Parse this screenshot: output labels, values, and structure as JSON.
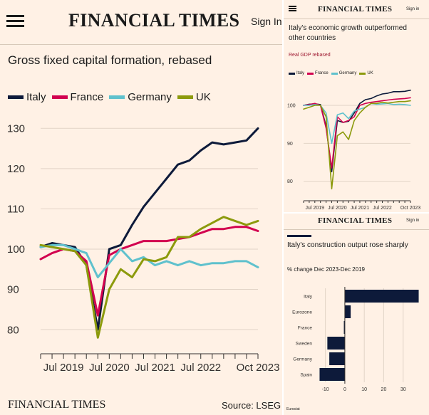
{
  "brand": "FINANCIAL TIMES",
  "sign_in": "Sign In",
  "sign_in_small": "Sign in",
  "colors": {
    "italy": "#0d1a3a",
    "france": "#d2004f",
    "germany": "#5fc1cd",
    "uk": "#8c9a0c",
    "bar": "#0d1a3a",
    "background": "#fff1e5"
  },
  "main_panel": {
    "source": "Source: LSEG",
    "footer_brand": "FINANCIAL TIMES"
  },
  "right_bottom_panel": {
    "footer": "Eurostat"
  },
  "chart_data": [
    {
      "type": "line",
      "title": "Gross fixed capital formation, rebased",
      "x_tick_labels": [
        "Jul 2019",
        "Jul 2020",
        "Jul 2021",
        "Jul 2022",
        "Oct 2023"
      ],
      "y_tick_labels": [
        "130",
        "120",
        "110",
        "100",
        "90",
        "80"
      ],
      "ylim": [
        77,
        132
      ],
      "x": [
        2019.0,
        2019.25,
        2019.5,
        2019.75,
        2020.0,
        2020.25,
        2020.5,
        2020.75,
        2021.0,
        2021.25,
        2021.5,
        2021.75,
        2022.0,
        2022.25,
        2022.5,
        2022.75,
        2023.0,
        2023.25,
        2023.5,
        2023.75
      ],
      "series": [
        {
          "name": "Italy",
          "color_key": "italy",
          "values": [
            100.5,
            101.5,
            101.0,
            100.5,
            96.0,
            80.0,
            100.0,
            101.0,
            106.0,
            110.5,
            114.0,
            117.5,
            121.0,
            122.0,
            124.5,
            126.5,
            126.0,
            126.5,
            127.0,
            130.0
          ]
        },
        {
          "name": "France",
          "color_key": "france",
          "values": [
            97.5,
            99.0,
            100.0,
            99.5,
            97.0,
            83.5,
            98.5,
            100.0,
            101.0,
            102.0,
            102.0,
            102.0,
            102.5,
            103.0,
            104.0,
            105.0,
            105.0,
            105.5,
            105.5,
            104.5
          ]
        },
        {
          "name": "Germany",
          "color_key": "germany",
          "values": [
            100.5,
            101.0,
            101.0,
            100.0,
            99.0,
            93.0,
            96.5,
            100.0,
            97.0,
            98.0,
            96.0,
            97.0,
            96.0,
            97.0,
            96.0,
            96.5,
            96.5,
            97.0,
            97.0,
            95.5
          ]
        },
        {
          "name": "UK",
          "color_key": "uk",
          "values": [
            101.0,
            100.5,
            100.0,
            99.5,
            96.0,
            78.0,
            90.0,
            95.0,
            93.0,
            97.5,
            97.0,
            98.0,
            103.0,
            103.0,
            105.0,
            106.5,
            108.0,
            107.0,
            106.0,
            107.0
          ]
        }
      ]
    },
    {
      "type": "line",
      "title": "Italy's economic growth outperformed other countries",
      "subtitle": "Real GDP rebased",
      "x_tick_labels": [
        "Jul 2019",
        "Jul 2020",
        "Jul 2021",
        "Jul 2022",
        "Oct 2023"
      ],
      "y_tick_labels": [
        "100",
        "90",
        "80"
      ],
      "ylim": [
        76,
        106
      ],
      "x": [
        2019.0,
        2019.25,
        2019.5,
        2019.75,
        2020.0,
        2020.25,
        2020.5,
        2020.75,
        2021.0,
        2021.25,
        2021.5,
        2021.75,
        2022.0,
        2022.25,
        2022.5,
        2022.75,
        2023.0,
        2023.25,
        2023.5,
        2023.75
      ],
      "series": [
        {
          "name": "Italy",
          "color_key": "italy",
          "values": [
            100.0,
            100.3,
            100.4,
            100.2,
            94.5,
            82.5,
            96.0,
            95.5,
            95.8,
            98.0,
            100.5,
            101.5,
            101.8,
            102.5,
            103.0,
            103.2,
            103.6,
            103.6,
            103.7,
            104.0
          ]
        },
        {
          "name": "France",
          "color_key": "france",
          "values": [
            100.0,
            100.2,
            100.5,
            100.0,
            94.0,
            83.5,
            97.0,
            95.5,
            96.0,
            97.0,
            100.0,
            100.5,
            100.8,
            101.0,
            101.2,
            101.4,
            101.6,
            101.7,
            101.8,
            102.0
          ]
        },
        {
          "name": "Germany",
          "color_key": "germany",
          "values": [
            100.0,
            100.0,
            100.2,
            100.0,
            98.0,
            90.0,
            97.5,
            98.0,
            96.5,
            98.5,
            99.0,
            99.5,
            100.5,
            100.3,
            100.4,
            100.5,
            100.2,
            100.3,
            100.2,
            100.0
          ]
        },
        {
          "name": "UK",
          "color_key": "uk",
          "values": [
            99.0,
            99.5,
            100.0,
            100.0,
            97.0,
            78.0,
            92.0,
            93.0,
            91.0,
            96.0,
            98.0,
            99.5,
            100.5,
            100.5,
            100.8,
            100.6,
            100.8,
            101.0,
            101.0,
            101.2
          ]
        }
      ]
    },
    {
      "type": "bar",
      "orientation": "horizontal",
      "title": "Italy's construction output rose sharply",
      "subtitle": "% change Dec 2023-Dec 2019",
      "categories": [
        "Italy",
        "Eurozone",
        "France",
        "Sweden",
        "Germany",
        "Spain"
      ],
      "values": [
        38,
        3,
        -0.5,
        -9,
        -8,
        -13
      ],
      "xlim": [
        -15,
        40
      ],
      "x_ticks": [
        -10,
        0,
        10,
        20,
        30
      ],
      "x_tick_labels": [
        "-10",
        "0",
        "10",
        "20",
        "30"
      ]
    }
  ]
}
